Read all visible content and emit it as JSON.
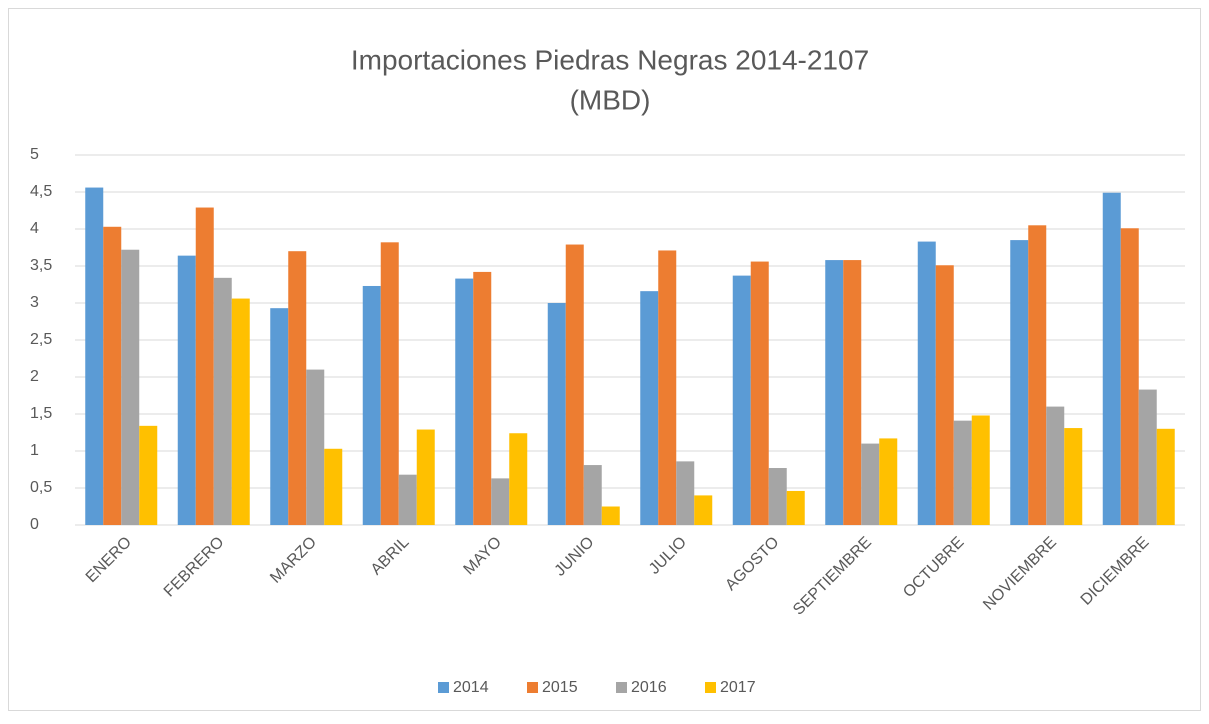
{
  "chart_data": {
    "type": "bar",
    "title": "Importaciones Piedras Negras 2014-2107",
    "subtitle": "(MBD)",
    "categories": [
      "ENERO",
      "FEBRERO",
      "MARZO",
      "ABRIL",
      "MAYO",
      "JUNIO",
      "JULIO",
      "AGOSTO",
      "SEPTIEMBRE",
      "OCTUBRE",
      "NOVIEMBRE",
      "DICIEMBRE"
    ],
    "series": [
      {
        "name": "2014",
        "color": "#5b9bd5",
        "values": [
          4.56,
          3.64,
          2.93,
          3.23,
          3.33,
          3.0,
          3.16,
          3.37,
          3.58,
          3.83,
          3.85,
          4.49
        ]
      },
      {
        "name": "2015",
        "color": "#ed7d31",
        "values": [
          4.03,
          4.29,
          3.7,
          3.82,
          3.42,
          3.79,
          3.71,
          3.56,
          3.58,
          3.51,
          4.05,
          4.01
        ]
      },
      {
        "name": "2016",
        "color": "#a5a5a5",
        "values": [
          3.72,
          3.34,
          2.1,
          0.68,
          0.63,
          0.81,
          0.86,
          0.77,
          1.1,
          1.41,
          1.6,
          1.83
        ]
      },
      {
        "name": "2017",
        "color": "#ffc000",
        "values": [
          1.34,
          3.06,
          1.03,
          1.29,
          1.24,
          0.25,
          0.4,
          0.46,
          1.17,
          1.48,
          1.31,
          1.3
        ]
      }
    ],
    "ylim": [
      0,
      5
    ],
    "yticks": [
      0,
      {
        "value": 0.5,
        "label": "0,5"
      },
      1,
      {
        "value": 1.5,
        "label": "1,5"
      },
      2,
      {
        "value": 2.5,
        "label": "2,5"
      },
      3,
      {
        "value": 3.5,
        "label": "3,5"
      },
      4,
      {
        "value": 4.5,
        "label": "4,5"
      },
      5
    ],
    "grid": true,
    "legend": "bottom"
  }
}
